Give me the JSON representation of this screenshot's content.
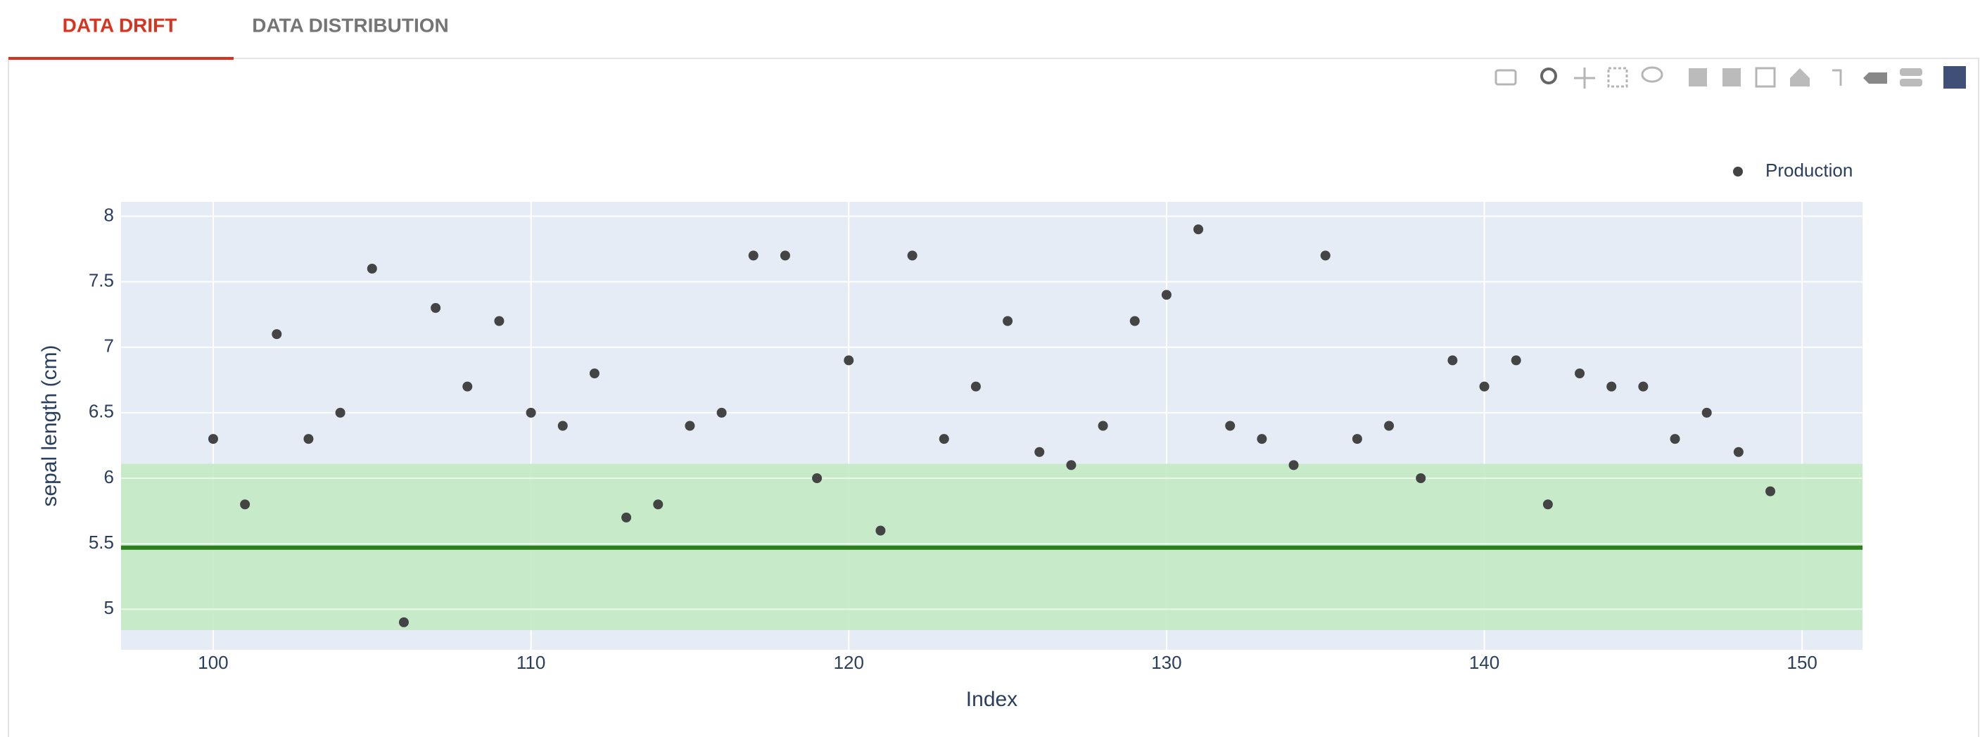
{
  "tabs": [
    {
      "label": "DATA DRIFT",
      "active": true
    },
    {
      "label": "DATA DISTRIBUTION",
      "active": false
    }
  ],
  "chart_data": {
    "type": "scatter",
    "x_label": "Index",
    "y_label": "sepal length (cm)",
    "x": [
      100,
      101,
      102,
      103,
      104,
      105,
      106,
      107,
      108,
      109,
      110,
      111,
      112,
      113,
      114,
      115,
      116,
      117,
      118,
      119,
      120,
      121,
      122,
      123,
      124,
      125,
      126,
      127,
      128,
      129,
      130,
      131,
      132,
      133,
      134,
      135,
      136,
      137,
      138,
      139,
      140,
      141,
      142,
      143,
      144,
      145,
      146,
      147,
      148,
      149
    ],
    "series": [
      {
        "name": "Production",
        "color": "#444444",
        "values": [
          6.3,
          5.8,
          7.1,
          6.3,
          6.5,
          7.6,
          4.9,
          7.3,
          6.7,
          7.2,
          6.5,
          6.4,
          6.8,
          5.7,
          5.8,
          6.4,
          6.5,
          7.7,
          7.7,
          6.0,
          6.9,
          5.6,
          7.7,
          6.3,
          6.7,
          7.2,
          6.2,
          6.1,
          6.4,
          7.2,
          7.4,
          7.9,
          6.4,
          6.3,
          6.1,
          7.7,
          6.3,
          6.4,
          6.0,
          6.9,
          6.7,
          6.9,
          5.8,
          6.8,
          6.7,
          6.7,
          6.3,
          6.5,
          6.2,
          5.9
        ]
      }
    ],
    "xlim": [
      97.1,
      151.9
    ],
    "ylim": [
      4.69,
      8.11
    ],
    "xticks": [
      100,
      110,
      120,
      130,
      140,
      150
    ],
    "yticks": [
      5,
      5.5,
      6,
      6.5,
      7,
      7.5,
      8
    ],
    "reference_band": [
      4.84,
      6.11
    ],
    "reference_line": 5.47,
    "band_color": "#c5ebc6",
    "line_color": "#2e7d1f",
    "grid": true,
    "legend": "top-right"
  }
}
